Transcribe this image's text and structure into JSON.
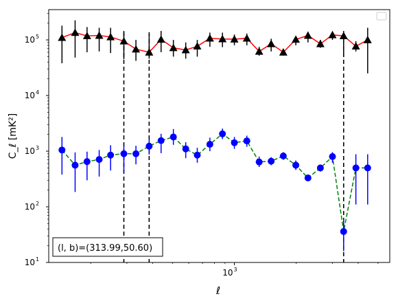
{
  "chart_data": {
    "type": "scatter",
    "xscale": "log",
    "yscale": "log",
    "xlim": [
      125,
      5700
    ],
    "ylim": [
      10,
      350000
    ],
    "xlabel": "ℓ",
    "ylabel": "C_ℓ [mK²]",
    "xticks": [
      {
        "value": 1000,
        "base": "10",
        "exp": "3"
      }
    ],
    "yticks": [
      {
        "value": 10,
        "base": "10",
        "exp": "1"
      },
      {
        "value": 100,
        "base": "10",
        "exp": "2"
      },
      {
        "value": 1000,
        "base": "10",
        "exp": "3"
      },
      {
        "value": 10000,
        "base": "10",
        "exp": "4"
      },
      {
        "value": 100000,
        "base": "10",
        "exp": "5"
      }
    ],
    "annotation": "(l, b)=(313.99,50.60)",
    "legend": {
      "position": "top-right",
      "entries": []
    },
    "vlines": [
      290,
      385,
      3400
    ],
    "series": [
      {
        "marker": "triangle",
        "color": "#000000",
        "line_color": "#ff0000",
        "line_style": "solid",
        "x": [
          145,
          168,
          192,
          220,
          250,
          290,
          332,
          385,
          440,
          505,
          580,
          660,
          760,
          875,
          1000,
          1150,
          1320,
          1510,
          1730,
          1990,
          2280,
          2620,
          3000,
          3400,
          3900,
          4450
        ],
        "y": [
          110000,
          135000,
          118000,
          120000,
          113000,
          95000,
          68000,
          60000,
          102000,
          72000,
          66000,
          77000,
          107000,
          104000,
          103000,
          107000,
          62000,
          85000,
          60000,
          102000,
          120000,
          85000,
          123000,
          118000,
          77000,
          100000
        ],
        "err_low": [
          38000,
          48000,
          60000,
          62000,
          58000,
          45000,
          42000,
          46000,
          60000,
          50000,
          46000,
          50000,
          75000,
          74000,
          80000,
          80000,
          52000,
          62000,
          52000,
          80000,
          90000,
          72000,
          100000,
          50000,
          62000,
          25000
        ],
        "err_high": [
          180000,
          225000,
          170000,
          165000,
          165000,
          145000,
          100000,
          128000,
          145000,
          100000,
          90000,
          100000,
          135000,
          135000,
          125000,
          130000,
          75000,
          105000,
          68000,
          112000,
          140000,
          100000,
          140000,
          145000,
          95000,
          165000
        ]
      },
      {
        "marker": "circle",
        "color": "#0000ff",
        "line_color": "#008000",
        "line_style": "dashed",
        "x": [
          145,
          168,
          192,
          220,
          250,
          290,
          332,
          385,
          440,
          505,
          580,
          660,
          760,
          875,
          1000,
          1150,
          1320,
          1510,
          1730,
          1990,
          2280,
          2620,
          3000,
          3400,
          3900,
          4450
        ],
        "y": [
          1050,
          560,
          650,
          710,
          850,
          900,
          900,
          1230,
          1550,
          1800,
          1100,
          850,
          1330,
          2050,
          1420,
          1530,
          640,
          660,
          820,
          560,
          330,
          500,
          800,
          36,
          500,
          500
        ],
        "err_low": [
          380,
          185,
          300,
          350,
          450,
          420,
          580,
          870,
          920,
          1300,
          750,
          620,
          1000,
          1650,
          1100,
          1200,
          520,
          560,
          700,
          460,
          290,
          430,
          620,
          16,
          110,
          110
        ],
        "err_high": [
          1800,
          950,
          980,
          1050,
          1280,
          1250,
          1250,
          1650,
          2050,
          2500,
          1450,
          1150,
          1750,
          2550,
          1800,
          1900,
          800,
          780,
          960,
          680,
          370,
          570,
          960,
          60,
          880,
          880
        ]
      }
    ]
  }
}
